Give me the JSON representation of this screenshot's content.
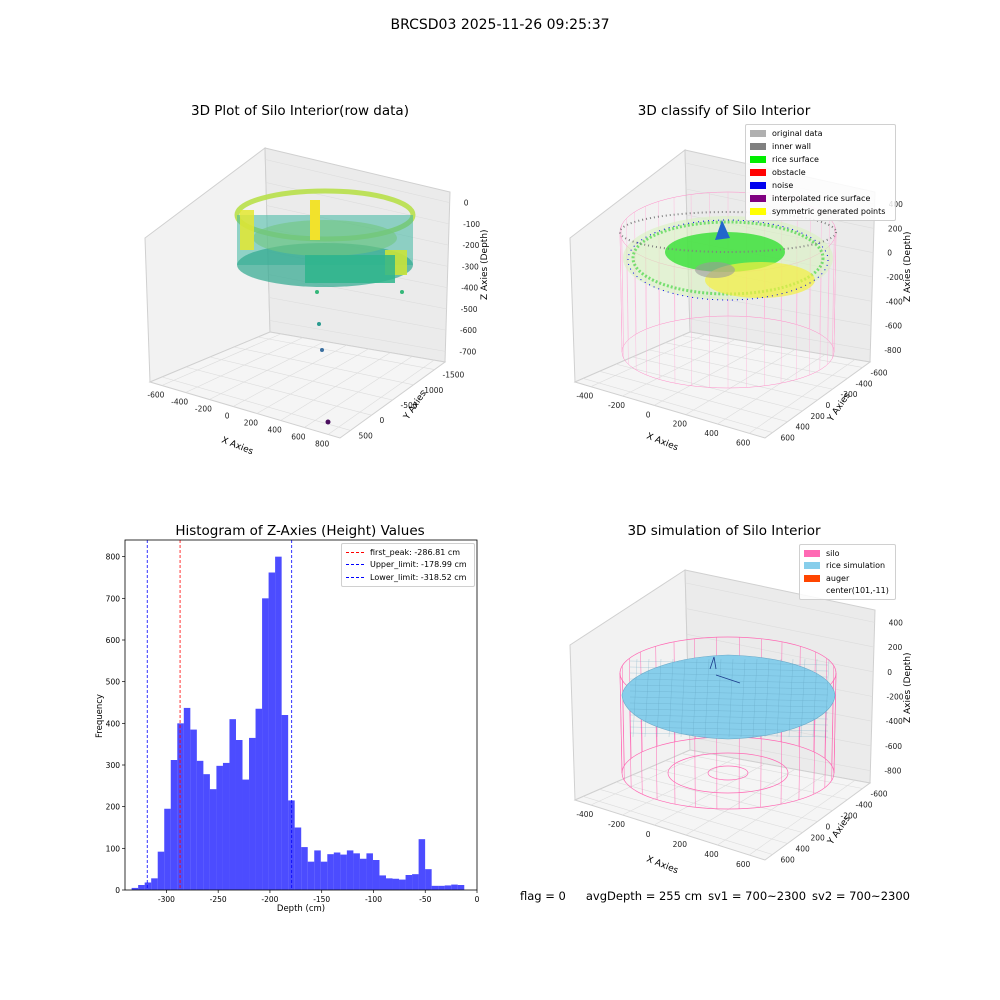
{
  "figure": {
    "suptitle": "BRCSD03 2025-11-26 09:25:37",
    "footer": {
      "flag": "flag = 0",
      "avg_depth": "avgDepth = 255 cm",
      "sv1": "sv1 = 700~2300",
      "sv2": "sv2 = 700~2300"
    }
  },
  "panels": {
    "raw": {
      "title": "3D Plot of Silo Interior(row data)",
      "xlabel": "X Axies",
      "ylabel": "Y Axies",
      "zlabel": "Z Axies (Depth)",
      "xticks": [
        "-600",
        "-400",
        "-200",
        "0",
        "200",
        "400",
        "600",
        "800"
      ],
      "yticks": [
        "500",
        "0",
        "-500",
        "-1000",
        "-1500"
      ],
      "zticks": [
        "0",
        "-100",
        "-200",
        "-300",
        "-400",
        "-500",
        "-600",
        "-700"
      ]
    },
    "classify": {
      "title": "3D classify of Silo Interior",
      "xlabel": "X Axies",
      "ylabel": "Y Axies",
      "zlabel": "Z Axies (Depth)",
      "xticks": [
        "-400",
        "-200",
        "0",
        "200",
        "400",
        "600"
      ],
      "yticks": [
        "600",
        "400",
        "200",
        "0",
        "-200",
        "-400",
        "-600"
      ],
      "zticks": [
        "400",
        "200",
        "0",
        "-200",
        "-400",
        "-600",
        "-800"
      ],
      "legend": [
        {
          "label": "original data",
          "color": "#b0b0b0"
        },
        {
          "label": "inner wall",
          "color": "#808080"
        },
        {
          "label": "rice surface",
          "color": "#00ee00"
        },
        {
          "label": "obstacle",
          "color": "#ff0000"
        },
        {
          "label": "noise",
          "color": "#0000ee"
        },
        {
          "label": "interpolated rice surface",
          "color": "#800080"
        },
        {
          "label": "symmetric generated points",
          "color": "#ffff00"
        }
      ]
    },
    "simulation": {
      "title": "3D simulation of Silo Interior",
      "xlabel": "X Axies",
      "ylabel": "Y Axies",
      "zlabel": "Z Axies (Depth)",
      "xticks": [
        "-400",
        "-200",
        "0",
        "200",
        "400",
        "600"
      ],
      "yticks": [
        "600",
        "400",
        "200",
        "0",
        "-200",
        "-400",
        "-600"
      ],
      "zticks": [
        "400",
        "200",
        "0",
        "-200",
        "-400",
        "-600",
        "-800"
      ],
      "legend": [
        {
          "label": "silo",
          "color": "#ff69b4"
        },
        {
          "label": "rice simulation",
          "color": "#87ceeb"
        },
        {
          "label": "auger",
          "color": "#ff4500"
        },
        {
          "label": "center(101,-11)",
          "color": ""
        }
      ]
    }
  },
  "chart_data": [
    {
      "type": "bar",
      "title": "Histogram of Z-Axies (Height) Values",
      "xlabel": "Depth (cm)",
      "ylabel": "Frequency",
      "xlim": [
        -340,
        0
      ],
      "ylim": [
        0,
        840
      ],
      "xticks": [
        -300,
        -250,
        -200,
        -150,
        -100,
        -50,
        0
      ],
      "yticks": [
        0,
        100,
        200,
        300,
        400,
        500,
        600,
        700,
        800
      ],
      "bar_color": "#0000ff",
      "bin_width": 6.3,
      "bin_start": -333.6,
      "values": [
        5,
        12,
        18,
        28,
        92,
        195,
        312,
        400,
        437,
        385,
        310,
        278,
        242,
        298,
        305,
        410,
        360,
        265,
        365,
        435,
        700,
        762,
        800,
        420,
        215,
        150,
        103,
        68,
        95,
        68,
        86,
        90,
        85,
        95,
        88,
        75,
        88,
        72,
        35,
        28,
        27,
        25,
        36,
        38,
        122,
        50,
        10,
        10,
        11,
        13,
        12
      ],
      "lines": [
        {
          "label": "first_peak: -286.81 cm",
          "x": -286.81,
          "color": "#ff0000"
        },
        {
          "label": "Upper_limit: -178.99 cm",
          "x": -178.99,
          "color": "#0000ff"
        },
        {
          "label": "Lower_limit: -318.52 cm",
          "x": -318.52,
          "color": "#0000ff"
        }
      ],
      "legend_position": "top-right"
    }
  ]
}
